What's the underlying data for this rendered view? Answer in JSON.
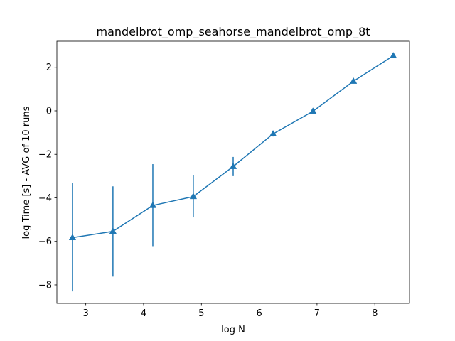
{
  "chart_data": {
    "type": "line",
    "title": "mandelbrot_omp_seahorse_mandelbrot_omp_8t",
    "xlabel": "log N",
    "ylabel": "log Time  [s] - AVG of 10 runs",
    "xlim": [
      2.5,
      8.6
    ],
    "ylim": [
      -8.85,
      3.2
    ],
    "xticks": [
      3,
      4,
      5,
      6,
      7,
      8
    ],
    "yticks": [
      -8,
      -6,
      -4,
      -2,
      0,
      2
    ],
    "ytick_labels": [
      "−8",
      "−6",
      "−4",
      "−2",
      "0",
      "2"
    ],
    "grid": false,
    "marker": "triangle",
    "color": "#1f77b4",
    "series": [
      {
        "x": [
          2.77,
          3.47,
          4.16,
          4.86,
          5.55,
          6.24,
          6.93,
          7.63,
          8.32
        ],
        "y": [
          -5.83,
          -5.54,
          -4.35,
          -3.94,
          -2.56,
          -1.06,
          -0.02,
          1.36,
          2.53
        ],
        "err_low": [
          -8.3,
          -7.62,
          -6.22,
          -4.9,
          -3.0,
          -1.18,
          -0.1,
          1.3,
          2.43
        ],
        "err_high": [
          -3.33,
          -3.47,
          -2.45,
          -2.97,
          -2.12,
          -0.95,
          0.07,
          1.42,
          2.63
        ]
      }
    ]
  }
}
